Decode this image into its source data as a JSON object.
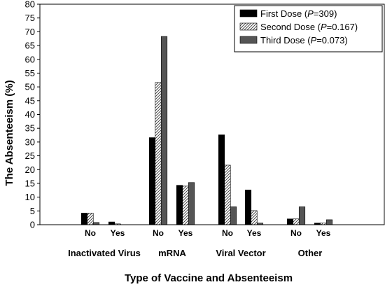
{
  "chart_data": {
    "type": "bar",
    "xlabel": "Type of Vaccine and Absenteeism",
    "ylabel": "The Absenteeism (%)",
    "ylim": [
      0,
      80
    ],
    "yticks": [
      "0",
      "5",
      "10",
      "15",
      "20",
      "25",
      "30",
      "35",
      "40",
      "45",
      "50",
      "55",
      "60",
      "65",
      "70",
      "75",
      "80"
    ],
    "grid": false,
    "legend_position": "top-right",
    "groups": [
      {
        "name": "Inactivated Virus",
        "subcategories": [
          "No",
          "Yes"
        ]
      },
      {
        "name": "mRNA",
        "subcategories": [
          "No",
          "Yes"
        ]
      },
      {
        "name": "Viral Vector",
        "subcategories": [
          "No",
          "Yes"
        ]
      },
      {
        "name": "Other",
        "subcategories": [
          "No",
          "Yes"
        ]
      }
    ],
    "categories": [
      "Inactivated Virus - No",
      "Inactivated Virus - Yes",
      "mRNA - No",
      "mRNA - Yes",
      "Viral Vector - No",
      "Viral Vector - Yes",
      "Other - No",
      "Other - Yes"
    ],
    "series": [
      {
        "name": "First Dose",
        "legend_prefix": "First Dose (",
        "legend_p": "P",
        "legend_suffix": "=309)",
        "style": "solid-black",
        "values": [
          4.2,
          1.0,
          31.6,
          14.3,
          32.6,
          12.6,
          2.1,
          0.6
        ]
      },
      {
        "name": "Second Dose",
        "legend_prefix": "Second Dose (",
        "legend_p": "P",
        "legend_suffix": "=0.167)",
        "style": "hatched",
        "values": [
          4.2,
          0.3,
          51.6,
          14.0,
          21.6,
          5.1,
          2.1,
          0.6
        ]
      },
      {
        "name": "Third Dose",
        "legend_prefix": "Third Dose (",
        "legend_p": "P",
        "legend_suffix": "=0.073)",
        "style": "solid-gray",
        "values": [
          0.8,
          0.0,
          68.3,
          15.3,
          6.5,
          0.6,
          6.5,
          1.8
        ]
      }
    ]
  }
}
